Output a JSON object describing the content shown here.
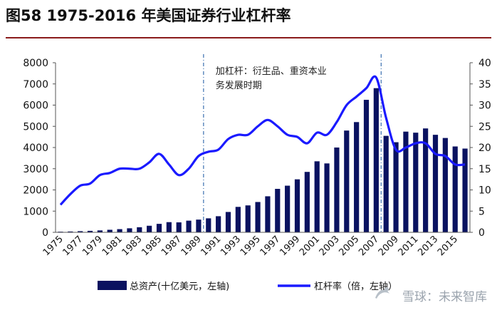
{
  "title": "图58 1975-2016 年美国证券行业杠杆率",
  "watermark": "雪球：未来智库",
  "chart_data": {
    "type": "bar+line",
    "categories": [
      "1975",
      "1976",
      "1977",
      "1978",
      "1979",
      "1980",
      "1981",
      "1982",
      "1983",
      "1984",
      "1985",
      "1986",
      "1987",
      "1988",
      "1989",
      "1990",
      "1991",
      "1992",
      "1993",
      "1994",
      "1995",
      "1996",
      "1997",
      "1998",
      "1999",
      "2000",
      "2001",
      "2002",
      "2003",
      "2004",
      "2005",
      "2006",
      "2007",
      "2008",
      "2009",
      "2010",
      "2011",
      "2012",
      "2013",
      "2014",
      "2015",
      "2016"
    ],
    "x_tick_labels": [
      "1975",
      "1977",
      "1979",
      "1981",
      "1983",
      "1985",
      "1987",
      "1989",
      "1991",
      "1993",
      "1995",
      "1997",
      "1999",
      "2001",
      "2003",
      "2005",
      "2007",
      "2009",
      "2011",
      "2013",
      "2015"
    ],
    "series": [
      {
        "name": "总资产(十亿美元，左轴)",
        "type": "bar",
        "axis": "left",
        "color": "#0a1260",
        "values": [
          30,
          40,
          55,
          70,
          90,
          120,
          150,
          190,
          240,
          310,
          400,
          480,
          470,
          550,
          600,
          660,
          760,
          960,
          1200,
          1270,
          1430,
          1700,
          2050,
          2200,
          2500,
          2850,
          3350,
          3250,
          4000,
          4800,
          5200,
          6250,
          6800,
          4550,
          4250,
          4750,
          4700,
          4900,
          4600,
          4450,
          4050,
          3950
        ]
      },
      {
        "name": "杠杆率（倍，左轴）",
        "type": "line",
        "axis": "right",
        "color": "#1a1aff",
        "values": [
          6.5,
          9,
          11,
          11.5,
          13.5,
          14,
          15,
          15,
          15,
          16.5,
          18.5,
          16,
          13.5,
          15,
          18,
          19,
          19.5,
          22,
          23,
          23,
          25,
          26.5,
          25,
          23,
          22.5,
          21,
          23.5,
          23,
          26,
          30,
          32,
          34,
          36.5,
          27,
          19.5,
          20,
          21,
          21,
          18.5,
          18,
          16,
          16
        ]
      }
    ],
    "yleft_ticks": [
      "0",
      "1000",
      "2000",
      "3000",
      "4000",
      "5000",
      "6000",
      "7000",
      "8000"
    ],
    "yright_ticks": [
      "0",
      "5",
      "10",
      "15",
      "20",
      "25",
      "30",
      "35",
      "40"
    ],
    "yleft_range": [
      0,
      8000
    ],
    "yright_range": [
      0,
      40
    ],
    "vlines": [
      "1990",
      "2008"
    ],
    "annotation": [
      "加杠杆：衍生品、重资本业",
      "务发展时期"
    ],
    "legend": {
      "position": "bottom",
      "items": [
        "总资产(十亿美元，左轴)",
        "杠杆率（倍，左轴）"
      ]
    }
  }
}
